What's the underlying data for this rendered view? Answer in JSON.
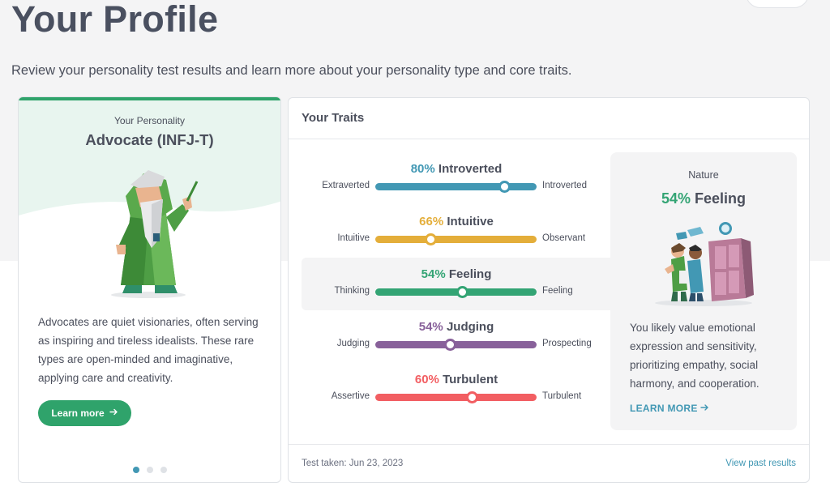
{
  "page": {
    "title": "Your Profile",
    "subtitle": "Review your personality test results and learn more about your personality type and core traits."
  },
  "personality_card": {
    "label": "Your Personality",
    "type": "Advocate (INFJ-T)",
    "description": "Advocates are quiet visionaries, often serving as inspiring and tireless idealists. These rare types are open-minded and imaginative, applying care and creativity.",
    "button_label": "Learn more",
    "button_icon": "arrow-right-icon",
    "carousel_pages": 3,
    "carousel_active": 0
  },
  "traits_card": {
    "title": "Your Traits",
    "traits": [
      {
        "percent": "80%",
        "name": "Introverted",
        "left": "Extraverted",
        "right": "Introverted",
        "value": 0.8,
        "position": 0.8,
        "color": "#4298b4"
      },
      {
        "percent": "66%",
        "name": "Intuitive",
        "left": "Intuitive",
        "right": "Observant",
        "value": 0.66,
        "position": 0.34,
        "color": "#e4ae3a"
      },
      {
        "percent": "54%",
        "name": "Feeling",
        "left": "Thinking",
        "right": "Feeling",
        "value": 0.54,
        "position": 0.54,
        "color": "#33a474"
      },
      {
        "percent": "54%",
        "name": "Judging",
        "left": "Judging",
        "right": "Prospecting",
        "value": 0.54,
        "position": 0.46,
        "color": "#88619a"
      },
      {
        "percent": "60%",
        "name": "Turbulent",
        "left": "Assertive",
        "right": "Turbulent",
        "value": 0.6,
        "position": 0.6,
        "color": "#f25e62"
      }
    ],
    "highlighted_index": 2,
    "nature": {
      "label": "Nature",
      "percent": "54%",
      "name": "Feeling",
      "color": "#33a474",
      "description": "You likely value emotional expression and sensitivity, prioritizing empathy, social harmony, and cooperation.",
      "link_label": "LEARN MORE",
      "link_icon": "arrow-right-icon"
    },
    "footer": {
      "test_taken": "Test taken: Jun 23, 2023",
      "past_results_link": "View past results"
    }
  }
}
